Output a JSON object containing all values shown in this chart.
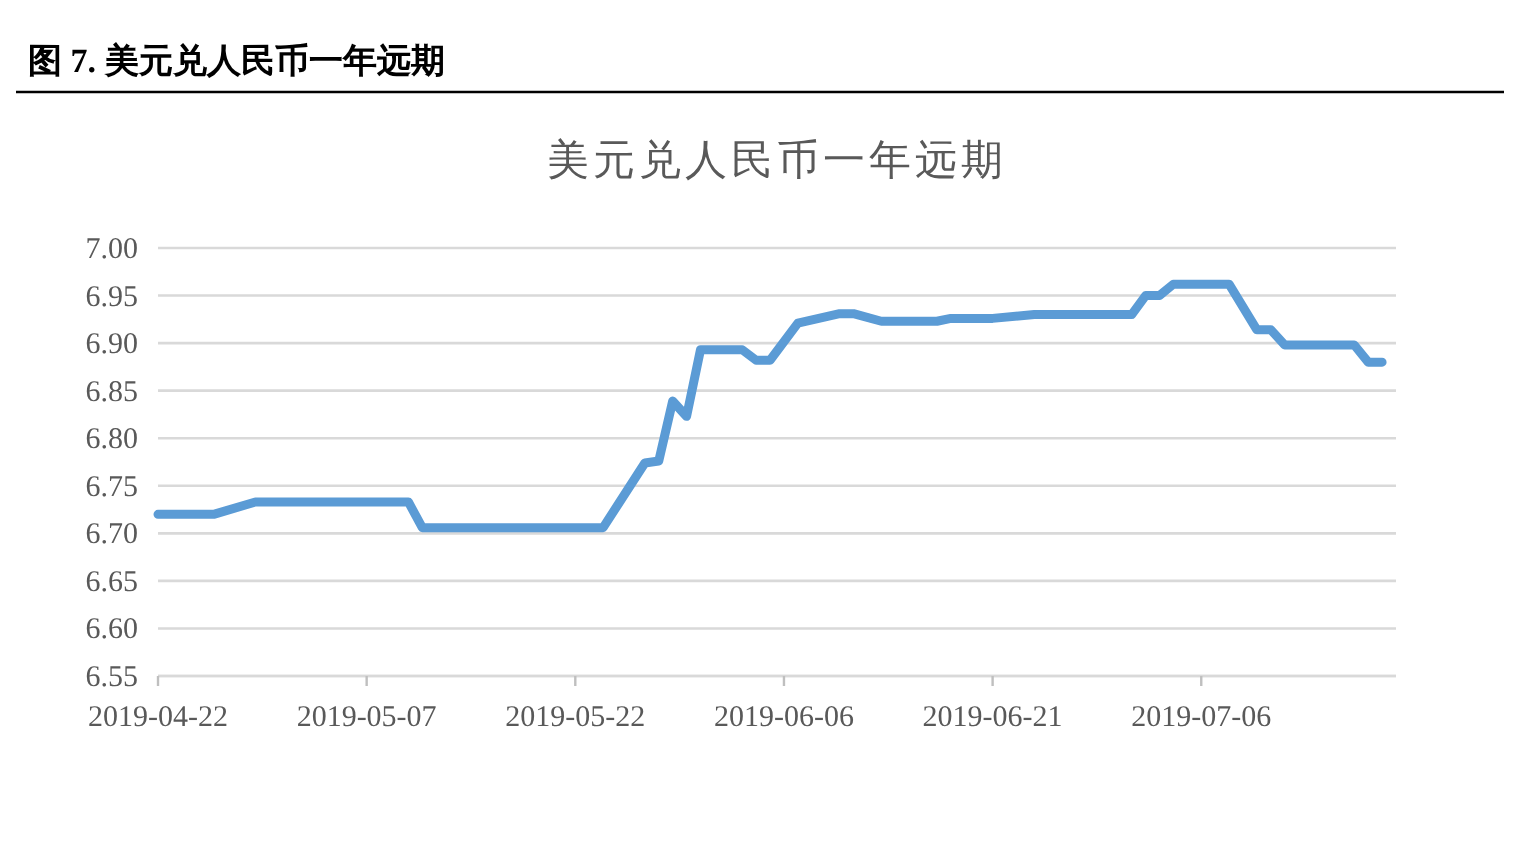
{
  "chart_data": {
    "type": "line",
    "title": "图 7. 美元兑人民币一年远期",
    "subtitle": "美元兑人民币一年远期",
    "x": [
      "2019-04-22",
      "2019-04-26",
      "2019-04-29",
      "2019-05-10",
      "2019-05-11",
      "2019-05-24",
      "2019-05-27",
      "2019-05-28",
      "2019-05-29",
      "2019-05-30",
      "2019-05-31",
      "2019-06-03",
      "2019-06-04",
      "2019-06-05",
      "2019-06-07",
      "2019-06-10",
      "2019-06-11",
      "2019-06-13",
      "2019-06-17",
      "2019-06-18",
      "2019-06-21",
      "2019-06-24",
      "2019-07-01",
      "2019-07-02",
      "2019-07-03",
      "2019-07-04",
      "2019-07-08",
      "2019-07-10",
      "2019-07-11",
      "2019-07-12",
      "2019-07-17",
      "2019-07-18",
      "2019-07-19"
    ],
    "series": [
      {
        "color": "#5b9bd5",
        "values": [
          6.72,
          6.72,
          6.733,
          6.733,
          6.706,
          6.706,
          6.774,
          6.776,
          6.839,
          6.823,
          6.893,
          6.893,
          6.882,
          6.882,
          6.921,
          6.931,
          6.931,
          6.923,
          6.923,
          6.926,
          6.926,
          6.93,
          6.93,
          6.95,
          6.95,
          6.962,
          6.962,
          6.914,
          6.914,
          6.898,
          6.898,
          6.88,
          6.88
        ]
      }
    ],
    "xlim": [
      "2019-04-22",
      "2019-07-20"
    ],
    "xticks": [
      "2019-04-22",
      "2019-05-07",
      "2019-05-22",
      "2019-06-06",
      "2019-06-21",
      "2019-07-06"
    ],
    "ylim": [
      6.55,
      7.0
    ],
    "yticks": [
      {
        "value": 6.55,
        "label": "6.55"
      },
      {
        "value": 6.6,
        "label": "6.60"
      },
      {
        "value": 6.65,
        "label": "6.65"
      },
      {
        "value": 6.7,
        "label": "6.70"
      },
      {
        "value": 6.75,
        "label": "6.75"
      },
      {
        "value": 6.8,
        "label": "6.80"
      },
      {
        "value": 6.85,
        "label": "6.85"
      },
      {
        "value": 6.9,
        "label": "6.90"
      },
      {
        "value": 6.95,
        "label": "6.95"
      },
      {
        "value": 7.0,
        "label": "7.00"
      }
    ],
    "grid": "y",
    "marker": "none",
    "line_style": "solid"
  }
}
